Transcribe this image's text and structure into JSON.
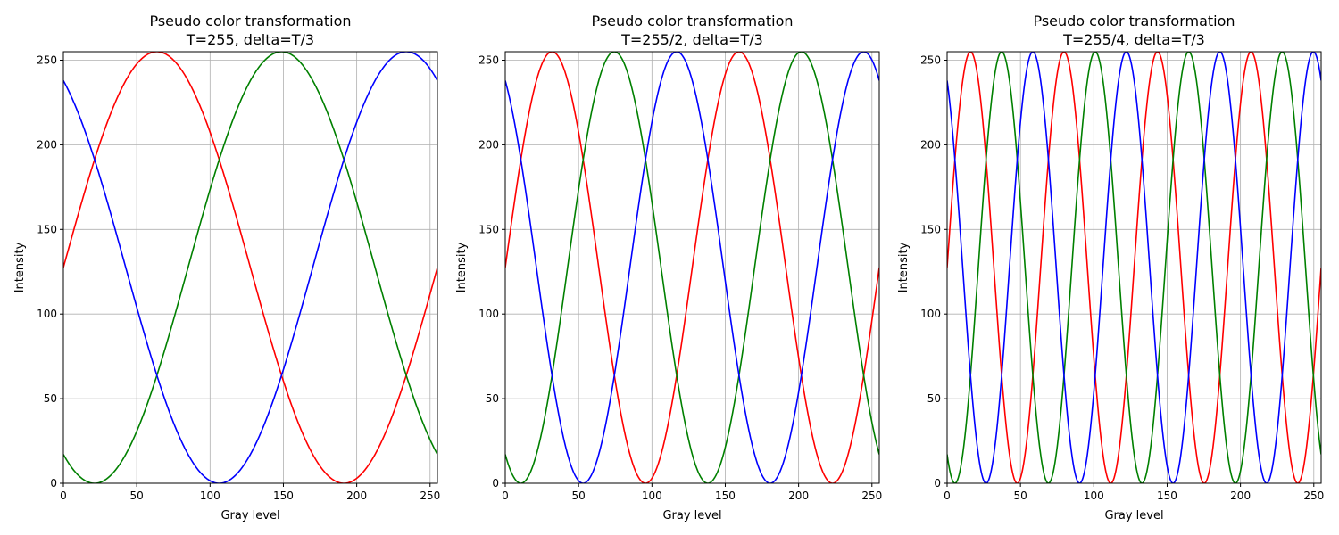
{
  "chart_data": [
    {
      "type": "line",
      "title": [
        "Pseudo color transformation",
        "T=255, delta=T/3"
      ],
      "xlabel": "Gray level",
      "ylabel": "Intensity",
      "xlim": [
        0,
        255
      ],
      "ylim": [
        0,
        255
      ],
      "xticks": [
        0,
        50,
        100,
        150,
        200,
        250
      ],
      "yticks": [
        0,
        50,
        100,
        150,
        200,
        250
      ],
      "grid": true,
      "period": 255,
      "amplitude": 127.5,
      "offset": 127.5,
      "series": [
        {
          "color": "#ff0000",
          "phase_shift": 0
        },
        {
          "color": "#008000",
          "phase_shift": -1
        },
        {
          "color": "#0000ff",
          "phase_shift": 1
        }
      ]
    },
    {
      "type": "line",
      "title": [
        "Pseudo color transformation",
        "T=255/2, delta=T/3"
      ],
      "xlabel": "Gray level",
      "ylabel": "Intensity",
      "xlim": [
        0,
        255
      ],
      "ylim": [
        0,
        255
      ],
      "xticks": [
        0,
        50,
        100,
        150,
        200,
        250
      ],
      "yticks": [
        0,
        50,
        100,
        150,
        200,
        250
      ],
      "grid": true,
      "period": 127.5,
      "amplitude": 127.5,
      "offset": 127.5,
      "series": [
        {
          "color": "#ff0000",
          "phase_shift": 0
        },
        {
          "color": "#008000",
          "phase_shift": -1
        },
        {
          "color": "#0000ff",
          "phase_shift": 1
        }
      ]
    },
    {
      "type": "line",
      "title": [
        "Pseudo color transformation",
        "T=255/4, delta=T/3"
      ],
      "xlabel": "Gray level",
      "ylabel": "Intensity",
      "xlim": [
        0,
        255
      ],
      "ylim": [
        0,
        255
      ],
      "xticks": [
        0,
        50,
        100,
        150,
        200,
        250
      ],
      "yticks": [
        0,
        50,
        100,
        150,
        200,
        250
      ],
      "grid": true,
      "period": 63.75,
      "amplitude": 127.5,
      "offset": 127.5,
      "series": [
        {
          "color": "#ff0000",
          "phase_shift": 0
        },
        {
          "color": "#008000",
          "phase_shift": -1
        },
        {
          "color": "#0000ff",
          "phase_shift": 1
        }
      ]
    }
  ]
}
